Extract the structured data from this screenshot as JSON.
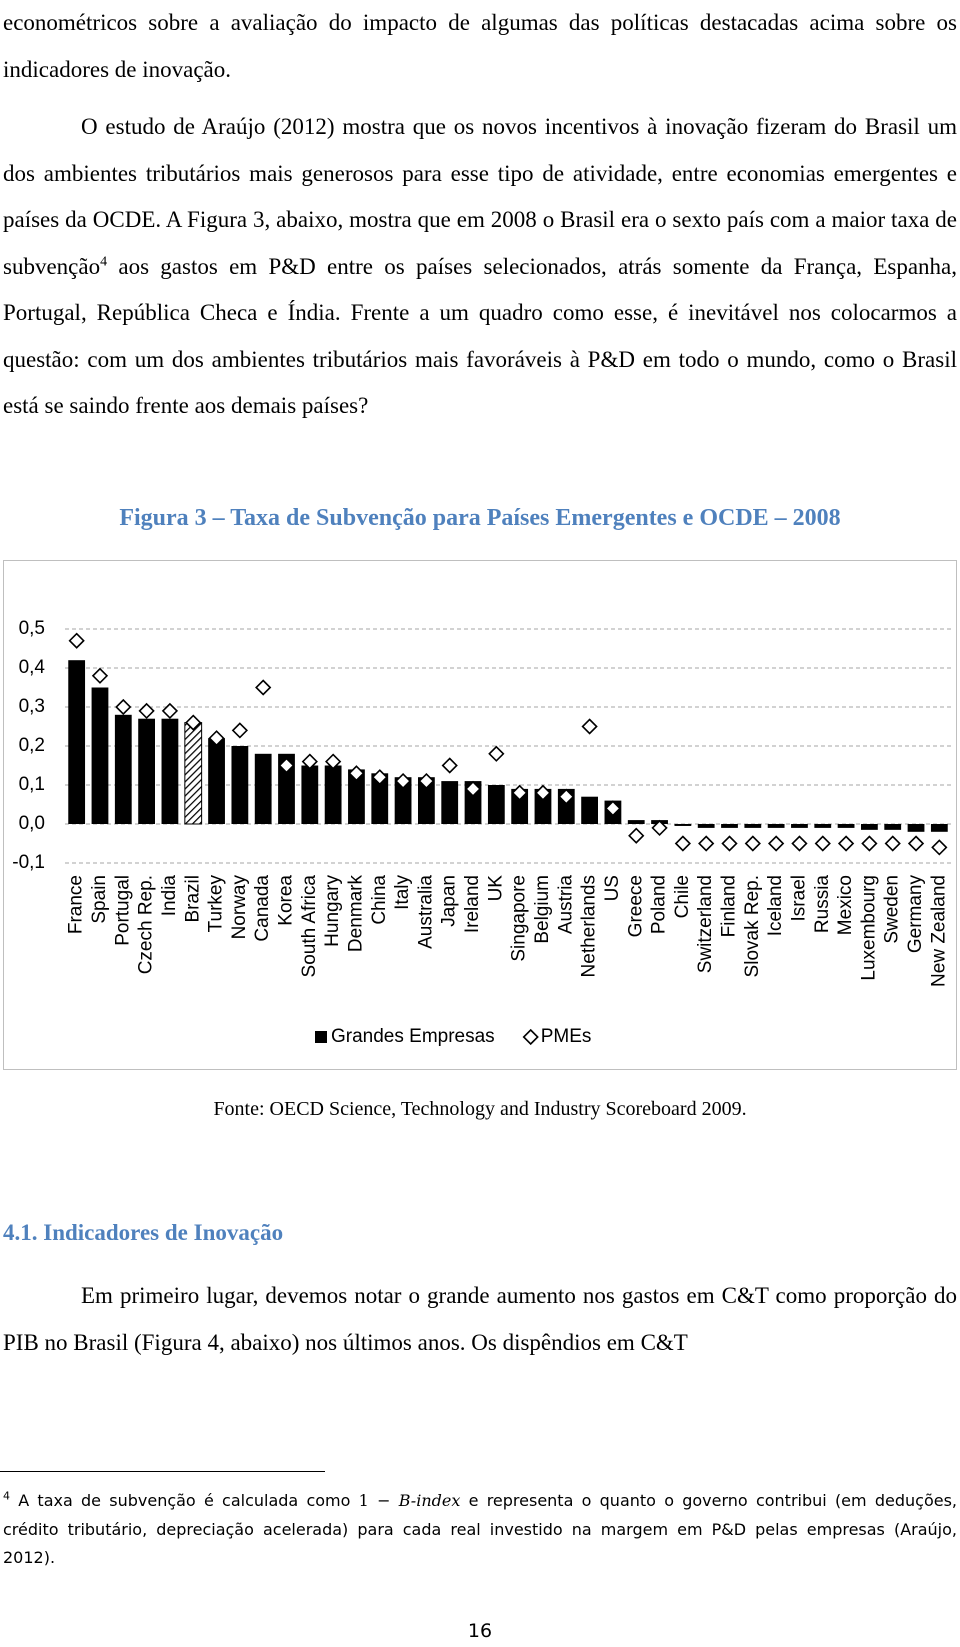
{
  "intro_text": "econométricos sobre a avaliação do impacto de algumas das políticas destacadas acima sobre os indicadores de inovação.",
  "paragraph_1": {
    "before": "O estudo de Araújo (2012) mostra que os novos incentivos à inovação fizeram do Brasil um dos ambientes tributários mais generosos para esse tipo de atividade, entre economias emergentes e países da OCDE. A Figura 3, abaixo, mostra que em 2008 o Brasil era o sexto país com a maior taxa de subvenção",
    "footnote_ref": "4",
    "after": " aos gastos em P&D entre os países selecionados, atrás somente da França, Espanha, Portugal, República Checa e Índia. Frente a um quadro como esse, é inevitável nos colocarmos a questão: com um dos ambientes tributários mais favoráveis à P&D em todo o mundo, como o Brasil está se saindo frente aos demais países?"
  },
  "chart_data": {
    "type": "bar",
    "title": "Figura 3 – Taxa de Subvenção para Países Emergentes e OCDE – 2008",
    "categories": [
      "France",
      "Spain",
      "Portugal",
      "Czech Rep.",
      "India",
      "Brazil",
      "Turkey",
      "Norway",
      "Canada",
      "Korea",
      "South Africa",
      "Hungary",
      "Denmark",
      "China",
      "Italy",
      "Australia",
      "Japan",
      "Ireland",
      "UK",
      "Singapore",
      "Belgium",
      "Austria",
      "Netherlands",
      "US",
      "Greece",
      "Poland",
      "Chile",
      "Switzerland",
      "Finland",
      "Slovak Rep.",
      "Iceland",
      "Israel",
      "Russia",
      "Mexico",
      "Luxembourg",
      "Sweden",
      "Germany",
      "New Zealand"
    ],
    "series": [
      {
        "name": "Grandes Empresas",
        "color": "#000000",
        "marker": "bar",
        "values": [
          0.42,
          0.35,
          0.28,
          0.27,
          0.27,
          0.26,
          0.22,
          0.2,
          0.18,
          0.18,
          0.15,
          0.15,
          0.14,
          0.13,
          0.12,
          0.12,
          0.11,
          0.11,
          0.1,
          0.09,
          0.09,
          0.09,
          0.07,
          0.06,
          0.01,
          0.01,
          -0.005,
          -0.01,
          -0.01,
          -0.01,
          -0.01,
          -0.01,
          -0.01,
          -0.01,
          -0.015,
          -0.015,
          -0.02,
          -0.02
        ]
      },
      {
        "name": "PMEs",
        "color": "#000000",
        "marker": "diamond",
        "values": [
          0.47,
          0.38,
          0.3,
          0.29,
          0.29,
          0.26,
          0.22,
          0.24,
          0.35,
          0.15,
          0.16,
          0.16,
          0.13,
          0.12,
          0.11,
          0.11,
          0.15,
          0.09,
          0.18,
          0.08,
          0.08,
          0.07,
          0.25,
          0.04,
          -0.03,
          -0.01,
          -0.05,
          -0.05,
          -0.05,
          -0.05,
          -0.05,
          -0.05,
          -0.05,
          -0.05,
          -0.05,
          -0.05,
          -0.05,
          -0.06
        ]
      }
    ],
    "hatched": [
      "Brazil"
    ],
    "ylim": [
      -0.1,
      0.5
    ],
    "yticks": [
      {
        "value": -0.1,
        "label": "-0,1"
      },
      {
        "value": 0,
        "label": "0,0"
      },
      {
        "value": 0.1,
        "label": "0,1"
      },
      {
        "value": 0.2,
        "label": "0,2"
      },
      {
        "value": 0.3,
        "label": "0,3"
      },
      {
        "value": 0.4,
        "label": "0,4"
      },
      {
        "value": 0.5,
        "label": "0,5"
      }
    ],
    "grid": true,
    "legend": "bottom"
  },
  "figure_source": "Fonte: OECD Science, Technology and Industry Scoreboard 2009.",
  "section_heading": "4.1. Indicadores de Inovação",
  "paragraph_2": "Em primeiro lugar, devemos notar o grande aumento nos gastos em C&T como proporção do PIB no Brasil (Figura 4, abaixo) nos últimos anos. Os dispêndios em C&T",
  "footnote": {
    "marker": "4",
    "before": " A taxa de subvenção é calculada como ",
    "formula": "1 −",
    "formula_var": "B-index",
    "after": " e representa o quanto o governo contribui (em deduções, crédito tributário, depreciação acelerada) para cada real investido na margem em P&D pelas empresas (Araújo, 2012)."
  },
  "page_number": "16"
}
